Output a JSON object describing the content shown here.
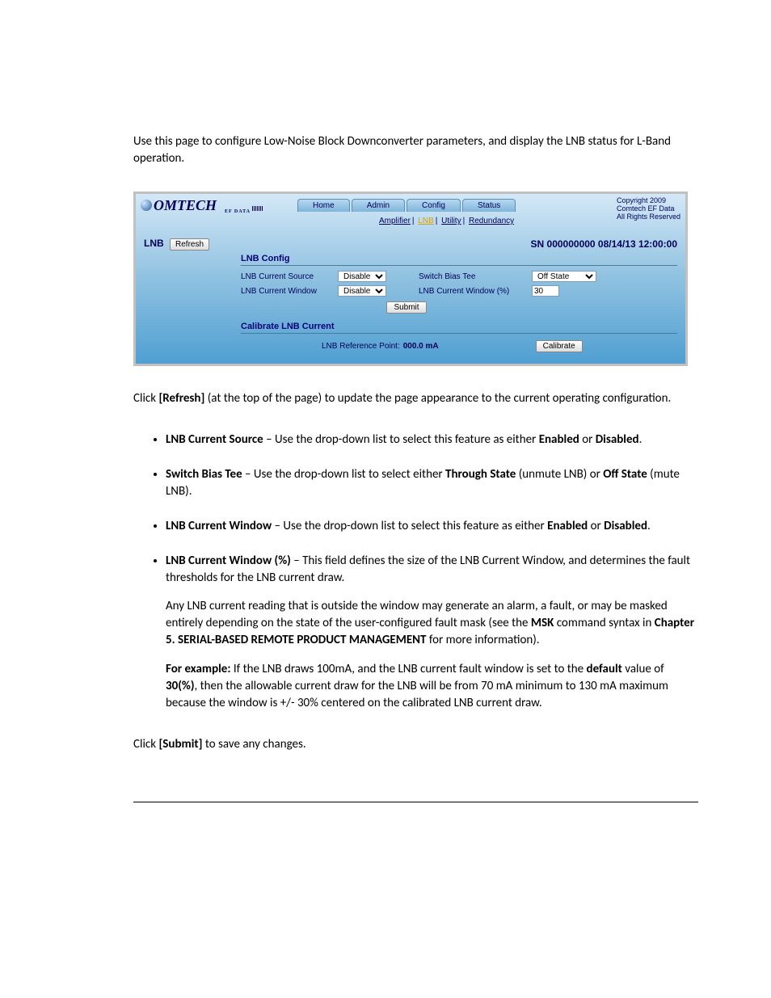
{
  "intro": "Use this page to configure Low-Noise Block Downconverter parameters, and display the LNB status for L-Band operation.",
  "screenshot": {
    "logo_main": "OMTECH",
    "logo_sub": "EF DATA",
    "nav": {
      "home": "Home",
      "admin": "Admin",
      "config": "Config",
      "status": "Status"
    },
    "subnav": {
      "amplifier": "Amplifier",
      "lnb": "LNB",
      "utility": "Utility",
      "redundancy": "Redundancy",
      "sep": "|"
    },
    "copyright": {
      "l1": "Copyright 2009",
      "l2": "Comtech EF Data",
      "l3": "All Rights Reserved"
    },
    "page_label": "LNB",
    "refresh": "Refresh",
    "sn": "SN 000000000 08/14/13 12:00:00",
    "config": {
      "title": "LNB Config",
      "current_source_lbl": "LNB Current Source",
      "current_source_val": "Disable",
      "bias_tee_lbl": "Switch Bias Tee",
      "bias_tee_val": "Off State",
      "current_window_lbl": "LNB Current Window",
      "current_window_val": "Disable",
      "current_window_pct_lbl": "LNB Current Window (%)",
      "current_window_pct_val": "30",
      "submit": "Submit"
    },
    "calibrate": {
      "title": "Calibrate LNB Current",
      "ref_lbl": "LNB Reference Point:",
      "ref_val": "000.0 mA",
      "btn": "Calibrate"
    },
    "colors": {
      "border": "#c0c0c0",
      "grad_top": "#d4e8f7",
      "grad_mid": "#8fc1e0",
      "grad_bot": "#4f9fd2",
      "text": "#00005a",
      "active_subnav": "#e0a000"
    }
  },
  "para_refresh_1": "Click ",
  "para_refresh_bold": "[Refresh]",
  "para_refresh_2": " (at the top of the page) to update the page appearance to the current operating configuration.",
  "bullets": {
    "b1_a": "LNB Current Source",
    "b1_b": " – Use the drop-down list to select this feature as either ",
    "b1_c": "Enabled",
    "b1_d": " or ",
    "b1_e": "Disabled",
    "b1_f": ".",
    "b2_a": "Switch Bias Tee",
    "b2_b": " – Use the drop-down list to select either ",
    "b2_c": "Through State",
    "b2_d": " (unmute LNB) or ",
    "b2_e": "Off State",
    "b2_f": " (mute LNB).",
    "b3_a": "LNB Current Window",
    "b3_b": " – Use the drop-down list to select this feature as either ",
    "b3_c": "Enabled",
    "b3_d": " or ",
    "b3_e": "Disabled",
    "b3_f": ".",
    "b4_a": "LNB Current Window (%)",
    "b4_b": " – This field defines the size of the LNB Current Window, and determines the fault thresholds for the LNB current draw.",
    "b4_p2_a": "Any LNB current reading that is outside the window may generate an alarm, a fault, or may be masked entirely depending on the state of the user-configured fault mask (see the ",
    "b4_p2_b": "MSK",
    "b4_p2_c": " command syntax in ",
    "b4_p2_d": "Chapter 5. SERIAL-BASED REMOTE PRODUCT MANAGEMENT",
    "b4_p2_e": " for more information).",
    "b4_p3_a": "For example:",
    "b4_p3_b": " If the LNB draws 100mA, and the LNB current fault window is set to the ",
    "b4_p3_c": "default",
    "b4_p3_d": " value of ",
    "b4_p3_e": "30(%)",
    "b4_p3_f": ", then the allowable current draw for the LNB will be from 70 mA minimum to 130 mA maximum because the window is +/- 30% centered on the calibrated LNB current draw."
  },
  "para_submit_1": "Click ",
  "para_submit_bold": "[Submit]",
  "para_submit_2": " to save any changes."
}
